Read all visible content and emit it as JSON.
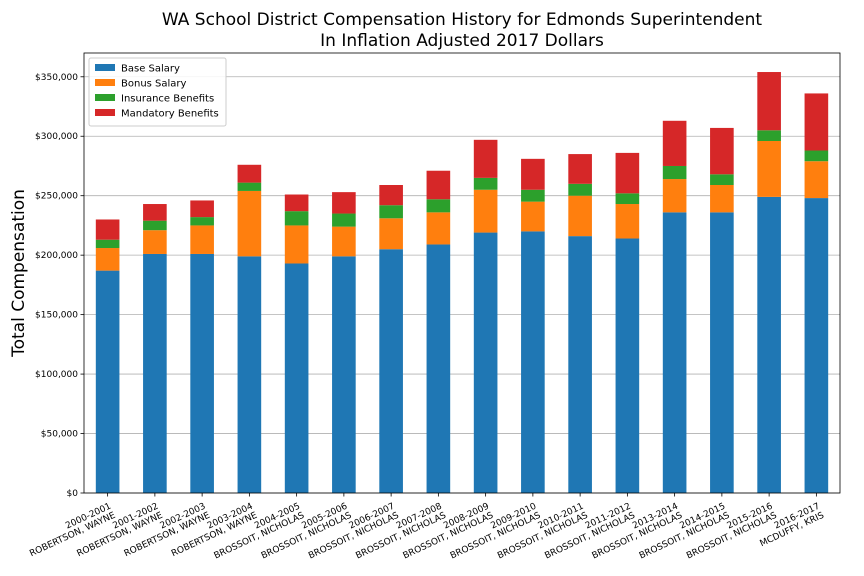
{
  "chart_data": {
    "type": "bar",
    "stacked": true,
    "title": [
      "WA School District Compensation History for Edmonds Superintendent",
      "In Inflation Adjusted 2017 Dollars"
    ],
    "xlabel": "",
    "ylabel": "Total Compensation",
    "ylim": [
      0,
      370000
    ],
    "yticks": [
      0,
      50000,
      100000,
      150000,
      200000,
      250000,
      300000,
      350000
    ],
    "ytick_labels": [
      "$0",
      "$50,000",
      "$100,000",
      "$150,000",
      "$200,000",
      "$250,000",
      "$300,000",
      "$350,000"
    ],
    "grid": true,
    "legend_position": "top-left",
    "categories": [
      [
        "2000-2001",
        "ROBERTSON, WAYNE"
      ],
      [
        "2001-2002",
        "ROBERTSON, WAYNE"
      ],
      [
        "2002-2003",
        "ROBERTSON, WAYNE"
      ],
      [
        "2003-2004",
        "ROBERTSON, WAYNE"
      ],
      [
        "2004-2005",
        "BROSSOIT, NICHOLAS"
      ],
      [
        "2005-2006",
        "BROSSOIT, NICHOLAS"
      ],
      [
        "2006-2007",
        "BROSSOIT, NICHOLAS"
      ],
      [
        "2007-2008",
        "BROSSOIT, NICHOLAS"
      ],
      [
        "2008-2009",
        "BROSSOIT, NICHOLAS"
      ],
      [
        "2009-2010",
        "BROSSOIT, NICHOLAS"
      ],
      [
        "2010-2011",
        "BROSSOIT, NICHOLAS"
      ],
      [
        "2011-2012",
        "BROSSOIT, NICHOLAS"
      ],
      [
        "2013-2014",
        "BROSSOIT, NICHOLAS"
      ],
      [
        "2014-2015",
        "BROSSOIT, NICHOLAS"
      ],
      [
        "2015-2016",
        "BROSSOIT, NICHOLAS"
      ],
      [
        "2016-2017",
        "MCDUFFY, KRIS"
      ]
    ],
    "series": [
      {
        "name": "Base Salary",
        "color": "#1f77b4",
        "values": [
          187000,
          201000,
          201000,
          199000,
          193000,
          199000,
          205000,
          209000,
          219000,
          220000,
          216000,
          214000,
          236000,
          236000,
          249000,
          248000
        ]
      },
      {
        "name": "Bonus Salary",
        "color": "#ff7f0e",
        "values": [
          19000,
          20000,
          24000,
          55000,
          32000,
          25000,
          26000,
          27000,
          36000,
          25000,
          34000,
          29000,
          28000,
          23000,
          47000,
          31000
        ]
      },
      {
        "name": "Insurance Benefits",
        "color": "#2ca02c",
        "values": [
          7000,
          8000,
          7000,
          7000,
          12000,
          11000,
          11000,
          11000,
          10000,
          10000,
          10000,
          9000,
          11000,
          9000,
          9000,
          9000
        ]
      },
      {
        "name": "Mandatory Benefits",
        "color": "#d62728",
        "values": [
          17000,
          14000,
          14000,
          15000,
          14000,
          18000,
          17000,
          24000,
          32000,
          26000,
          25000,
          34000,
          38000,
          39000,
          49000,
          48000
        ]
      }
    ]
  }
}
